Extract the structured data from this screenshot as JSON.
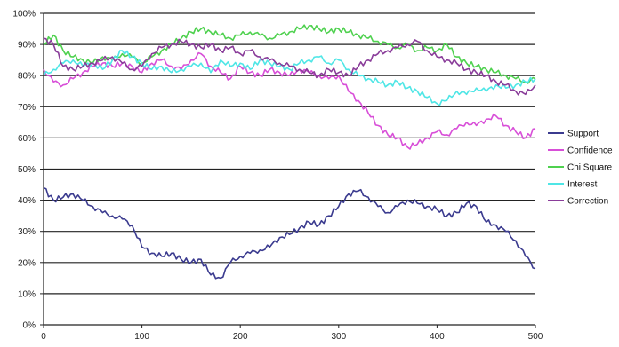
{
  "chart_data": {
    "type": "line",
    "xlim": [
      0,
      500
    ],
    "ylim": [
      0,
      100
    ],
    "x_ticks": [
      "0",
      "100",
      "200",
      "300",
      "400",
      "500"
    ],
    "y_ticks": [
      "0%",
      "10%",
      "20%",
      "30%",
      "40%",
      "50%",
      "60%",
      "70%",
      "80%",
      "90%",
      "100%"
    ],
    "grid": "horizontal",
    "legend_position": "right",
    "series": [
      {
        "name": "Support",
        "color": "#3b3b8f",
        "points": [
          [
            0,
            44
          ],
          [
            10,
            40
          ],
          [
            20,
            41
          ],
          [
            30,
            42
          ],
          [
            40,
            40
          ],
          [
            50,
            38
          ],
          [
            60,
            36
          ],
          [
            70,
            35
          ],
          [
            80,
            34
          ],
          [
            90,
            32
          ],
          [
            100,
            25
          ],
          [
            110,
            23
          ],
          [
            120,
            22
          ],
          [
            130,
            23
          ],
          [
            140,
            21
          ],
          [
            150,
            20
          ],
          [
            160,
            21
          ],
          [
            170,
            16
          ],
          [
            180,
            15
          ],
          [
            190,
            20
          ],
          [
            200,
            22
          ],
          [
            210,
            23
          ],
          [
            220,
            24
          ],
          [
            230,
            25
          ],
          [
            240,
            28
          ],
          [
            250,
            29
          ],
          [
            260,
            31
          ],
          [
            270,
            33
          ],
          [
            280,
            32
          ],
          [
            290,
            35
          ],
          [
            300,
            38
          ],
          [
            310,
            42
          ],
          [
            320,
            43
          ],
          [
            330,
            41
          ],
          [
            340,
            38
          ],
          [
            350,
            36
          ],
          [
            360,
            38
          ],
          [
            370,
            40
          ],
          [
            380,
            39
          ],
          [
            390,
            38
          ],
          [
            400,
            37
          ],
          [
            410,
            35
          ],
          [
            420,
            36
          ],
          [
            430,
            39
          ],
          [
            440,
            38
          ],
          [
            450,
            33
          ],
          [
            460,
            32
          ],
          [
            470,
            30
          ],
          [
            480,
            27
          ],
          [
            490,
            22
          ],
          [
            500,
            18
          ]
        ]
      },
      {
        "name": "Confidence",
        "color": "#d84fd8",
        "points": [
          [
            0,
            82
          ],
          [
            10,
            78
          ],
          [
            20,
            77
          ],
          [
            30,
            79
          ],
          [
            40,
            81
          ],
          [
            50,
            83
          ],
          [
            60,
            84
          ],
          [
            70,
            83
          ],
          [
            80,
            84
          ],
          [
            90,
            83
          ],
          [
            100,
            81
          ],
          [
            110,
            84
          ],
          [
            120,
            85
          ],
          [
            130,
            83
          ],
          [
            140,
            82
          ],
          [
            150,
            85
          ],
          [
            160,
            87
          ],
          [
            170,
            83
          ],
          [
            180,
            81
          ],
          [
            190,
            79
          ],
          [
            200,
            83
          ],
          [
            210,
            81
          ],
          [
            220,
            80
          ],
          [
            230,
            82
          ],
          [
            240,
            81
          ],
          [
            250,
            80
          ],
          [
            260,
            82
          ],
          [
            270,
            81
          ],
          [
            280,
            80
          ],
          [
            290,
            79
          ],
          [
            300,
            80
          ],
          [
            310,
            75
          ],
          [
            320,
            72
          ],
          [
            330,
            68
          ],
          [
            340,
            64
          ],
          [
            350,
            61
          ],
          [
            360,
            60
          ],
          [
            370,
            57
          ],
          [
            380,
            58
          ],
          [
            390,
            60
          ],
          [
            400,
            62
          ],
          [
            410,
            61
          ],
          [
            420,
            63
          ],
          [
            430,
            65
          ],
          [
            440,
            64
          ],
          [
            450,
            66
          ],
          [
            460,
            67
          ],
          [
            470,
            64
          ],
          [
            480,
            62
          ],
          [
            490,
            60
          ],
          [
            500,
            63
          ]
        ]
      },
      {
        "name": "Chi Square",
        "color": "#4fd14f",
        "points": [
          [
            0,
            90
          ],
          [
            10,
            93
          ],
          [
            20,
            88
          ],
          [
            30,
            86
          ],
          [
            40,
            85
          ],
          [
            50,
            84
          ],
          [
            60,
            86
          ],
          [
            70,
            85
          ],
          [
            80,
            87
          ],
          [
            90,
            86
          ],
          [
            100,
            84
          ],
          [
            110,
            86
          ],
          [
            120,
            88
          ],
          [
            130,
            90
          ],
          [
            140,
            92
          ],
          [
            150,
            94
          ],
          [
            160,
            95
          ],
          [
            170,
            94
          ],
          [
            180,
            93
          ],
          [
            190,
            92
          ],
          [
            200,
            93
          ],
          [
            210,
            94
          ],
          [
            220,
            93
          ],
          [
            230,
            92
          ],
          [
            240,
            93
          ],
          [
            250,
            94
          ],
          [
            260,
            95
          ],
          [
            270,
            96
          ],
          [
            280,
            95
          ],
          [
            290,
            94
          ],
          [
            300,
            95
          ],
          [
            310,
            94
          ],
          [
            320,
            93
          ],
          [
            330,
            92
          ],
          [
            340,
            91
          ],
          [
            350,
            90
          ],
          [
            360,
            89
          ],
          [
            370,
            90
          ],
          [
            380,
            88
          ],
          [
            390,
            89
          ],
          [
            400,
            88
          ],
          [
            410,
            90
          ],
          [
            420,
            86
          ],
          [
            430,
            84
          ],
          [
            440,
            83
          ],
          [
            450,
            82
          ],
          [
            460,
            81
          ],
          [
            470,
            80
          ],
          [
            480,
            79
          ],
          [
            490,
            78
          ],
          [
            500,
            79
          ]
        ]
      },
      {
        "name": "Interest",
        "color": "#4fe6e6",
        "points": [
          [
            0,
            80
          ],
          [
            10,
            82
          ],
          [
            20,
            84
          ],
          [
            30,
            85
          ],
          [
            40,
            83
          ],
          [
            50,
            84
          ],
          [
            60,
            82
          ],
          [
            70,
            85
          ],
          [
            80,
            88
          ],
          [
            90,
            86
          ],
          [
            100,
            84
          ],
          [
            110,
            82
          ],
          [
            120,
            83
          ],
          [
            130,
            81
          ],
          [
            140,
            82
          ],
          [
            150,
            83
          ],
          [
            160,
            84
          ],
          [
            170,
            81
          ],
          [
            180,
            85
          ],
          [
            190,
            83
          ],
          [
            200,
            84
          ],
          [
            210,
            82
          ],
          [
            220,
            85
          ],
          [
            230,
            84
          ],
          [
            240,
            83
          ],
          [
            250,
            82
          ],
          [
            260,
            84
          ],
          [
            270,
            85
          ],
          [
            280,
            86
          ],
          [
            290,
            84
          ],
          [
            300,
            85
          ],
          [
            310,
            82
          ],
          [
            320,
            80
          ],
          [
            330,
            79
          ],
          [
            340,
            78
          ],
          [
            350,
            77
          ],
          [
            360,
            78
          ],
          [
            370,
            76
          ],
          [
            380,
            75
          ],
          [
            390,
            73
          ],
          [
            400,
            71
          ],
          [
            410,
            72
          ],
          [
            420,
            75
          ],
          [
            430,
            74
          ],
          [
            440,
            76
          ],
          [
            450,
            75
          ],
          [
            460,
            77
          ],
          [
            470,
            76
          ],
          [
            480,
            77
          ],
          [
            490,
            78
          ],
          [
            500,
            79
          ]
        ]
      },
      {
        "name": "Correction",
        "color": "#8a3d9a",
        "points": [
          [
            0,
            92
          ],
          [
            10,
            90
          ],
          [
            20,
            83
          ],
          [
            30,
            82
          ],
          [
            40,
            83
          ],
          [
            50,
            84
          ],
          [
            60,
            85
          ],
          [
            70,
            86
          ],
          [
            80,
            84
          ],
          [
            90,
            82
          ],
          [
            100,
            83
          ],
          [
            110,
            87
          ],
          [
            120,
            89
          ],
          [
            130,
            90
          ],
          [
            140,
            91
          ],
          [
            150,
            90
          ],
          [
            160,
            89
          ],
          [
            170,
            90
          ],
          [
            180,
            88
          ],
          [
            190,
            89
          ],
          [
            200,
            87
          ],
          [
            210,
            88
          ],
          [
            220,
            86
          ],
          [
            230,
            85
          ],
          [
            240,
            84
          ],
          [
            250,
            83
          ],
          [
            260,
            82
          ],
          [
            270,
            81
          ],
          [
            280,
            80
          ],
          [
            290,
            82
          ],
          [
            300,
            81
          ],
          [
            310,
            80
          ],
          [
            320,
            83
          ],
          [
            330,
            85
          ],
          [
            340,
            87
          ],
          [
            350,
            88
          ],
          [
            360,
            89
          ],
          [
            370,
            90
          ],
          [
            380,
            91
          ],
          [
            390,
            88
          ],
          [
            400,
            86
          ],
          [
            410,
            85
          ],
          [
            420,
            84
          ],
          [
            430,
            82
          ],
          [
            440,
            81
          ],
          [
            450,
            80
          ],
          [
            460,
            78
          ],
          [
            470,
            77
          ],
          [
            480,
            75
          ],
          [
            490,
            74
          ],
          [
            500,
            77
          ]
        ]
      }
    ]
  }
}
